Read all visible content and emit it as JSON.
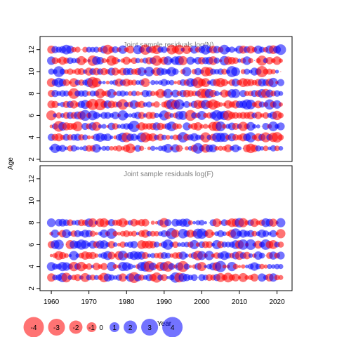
{
  "chart_data": {
    "type": "scatter",
    "subtype": "bubble",
    "shared_axes": {
      "xlabel": "Year",
      "ylabel": "Age",
      "xlim": [
        1957,
        2024
      ],
      "ylim": [
        1.8,
        13.2
      ],
      "x_ticks": [
        1960,
        1970,
        1980,
        1990,
        2000,
        2010,
        2020
      ],
      "y_ticks": [
        2,
        4,
        6,
        8,
        10,
        12
      ]
    },
    "panels": [
      {
        "title": "Joint sample residuals log(N)",
        "x_range": [
          1960,
          2021
        ],
        "ages": [
          3,
          4,
          5,
          6,
          7,
          8,
          9,
          10,
          11,
          12
        ],
        "values": "residuals in [-4, 4] for each age/year cell (estimated)"
      },
      {
        "title": "Joint sample residuals log(F)",
        "x_range": [
          1960,
          2021
        ],
        "ages": [
          3,
          4,
          5,
          6,
          7,
          8
        ],
        "values": "residuals in [-4, 4] for each age/year cell (estimated)"
      }
    ],
    "legend": {
      "values": [
        -4,
        -3,
        -2,
        -1,
        0,
        1,
        2,
        3,
        4
      ],
      "labels": [
        "-4",
        "-3",
        "-2",
        "-1",
        "0",
        "1",
        "2",
        "3",
        "4"
      ],
      "placement": "bottom-left"
    },
    "colors": {
      "negative": "#ff0000",
      "positive": "#0000ff",
      "opacity": 0.55
    }
  }
}
